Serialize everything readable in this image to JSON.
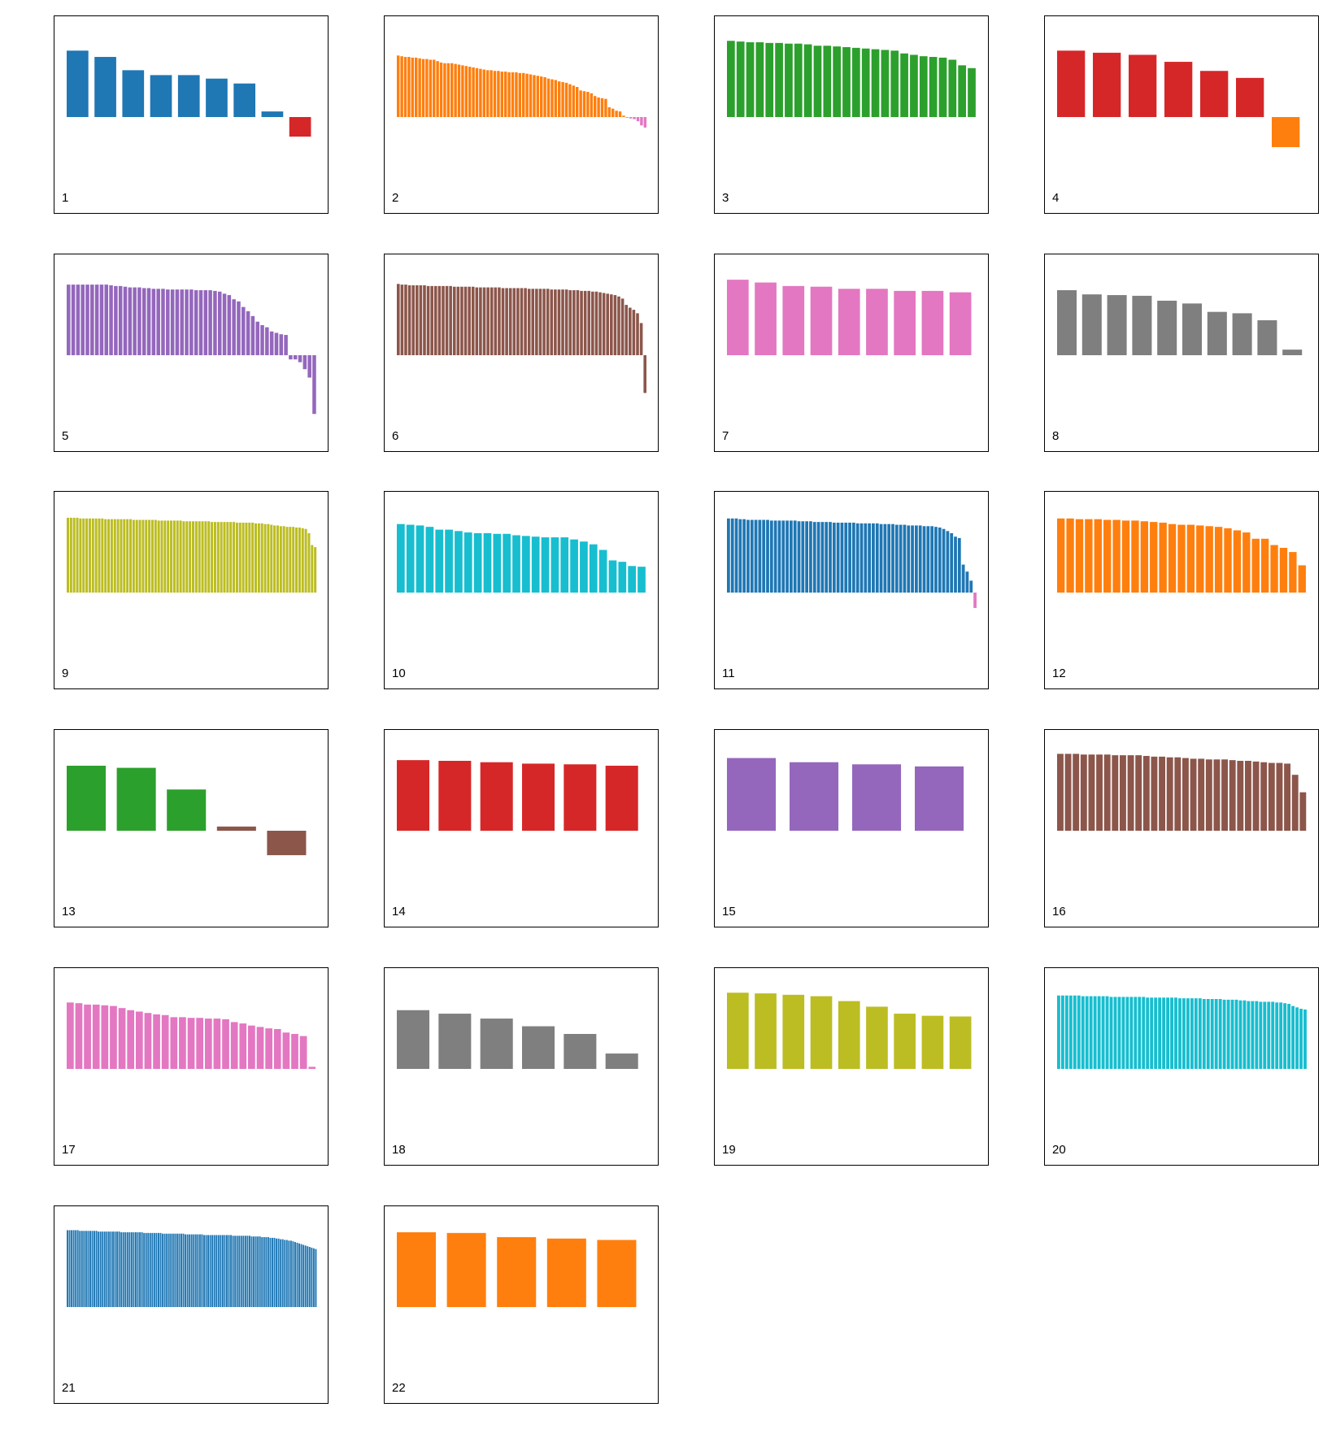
{
  "chart_data": [
    {
      "type": "bar",
      "label": "1",
      "color": "#1f77b4",
      "neg_color": "#d62728",
      "values": [
        0.95,
        0.86,
        0.67,
        0.6,
        0.6,
        0.55,
        0.48,
        0.08,
        -0.28
      ]
    },
    {
      "type": "bar",
      "label": "2",
      "color": "#ff7f0e",
      "neg_color": "#e377c2",
      "values": [
        0.88,
        0.87,
        0.86,
        0.86,
        0.85,
        0.85,
        0.84,
        0.83,
        0.83,
        0.82,
        0.82,
        0.8,
        0.78,
        0.77,
        0.77,
        0.77,
        0.76,
        0.75,
        0.74,
        0.73,
        0.72,
        0.71,
        0.7,
        0.69,
        0.68,
        0.67,
        0.67,
        0.66,
        0.66,
        0.65,
        0.65,
        0.64,
        0.64,
        0.64,
        0.63,
        0.63,
        0.62,
        0.61,
        0.6,
        0.59,
        0.58,
        0.57,
        0.55,
        0.54,
        0.53,
        0.51,
        0.5,
        0.49,
        0.47,
        0.45,
        0.43,
        0.38,
        0.37,
        0.36,
        0.34,
        0.3,
        0.28,
        0.27,
        0.26,
        0.14,
        0.12,
        0.09,
        0.08,
        0.02,
        -0.01,
        -0.02,
        -0.03,
        -0.06,
        -0.12,
        -0.15
      ]
    },
    {
      "type": "bar",
      "label": "3",
      "color": "#2ca02c",
      "values": [
        1.09,
        1.08,
        1.07,
        1.07,
        1.06,
        1.06,
        1.05,
        1.05,
        1.04,
        1.02,
        1.02,
        1.01,
        1.0,
        0.99,
        0.98,
        0.97,
        0.96,
        0.95,
        0.91,
        0.89,
        0.87,
        0.86,
        0.85,
        0.82,
        0.74,
        0.7
      ]
    },
    {
      "type": "bar",
      "label": "4",
      "color": "#d62728",
      "neg_color": "#ff7f0e",
      "values": [
        0.95,
        0.92,
        0.89,
        0.79,
        0.66,
        0.56,
        -0.43
      ]
    },
    {
      "type": "bar",
      "label": "5",
      "color": "#9467bd",
      "values": [
        1.01,
        1.01,
        1.01,
        1.01,
        1.01,
        1.01,
        1.01,
        1.01,
        1.01,
        1.0,
        0.99,
        0.99,
        0.98,
        0.97,
        0.97,
        0.97,
        0.96,
        0.96,
        0.95,
        0.95,
        0.95,
        0.94,
        0.94,
        0.94,
        0.94,
        0.94,
        0.94,
        0.93,
        0.93,
        0.93,
        0.93,
        0.92,
        0.91,
        0.88,
        0.86,
        0.8,
        0.77,
        0.69,
        0.63,
        0.56,
        0.48,
        0.43,
        0.4,
        0.34,
        0.32,
        0.3,
        0.29,
        -0.06,
        -0.06,
        -0.1,
        -0.2,
        -0.32,
        -0.84
      ]
    },
    {
      "type": "bar",
      "label": "6",
      "color": "#8c564b",
      "values": [
        1.02,
        1.01,
        1.01,
        1.0,
        1.0,
        1.0,
        1.0,
        1.0,
        0.99,
        0.99,
        0.99,
        0.99,
        0.99,
        0.99,
        0.99,
        0.98,
        0.98,
        0.98,
        0.98,
        0.98,
        0.98,
        0.97,
        0.97,
        0.97,
        0.97,
        0.97,
        0.97,
        0.97,
        0.96,
        0.96,
        0.96,
        0.96,
        0.96,
        0.96,
        0.96,
        0.95,
        0.95,
        0.95,
        0.95,
        0.95,
        0.95,
        0.94,
        0.94,
        0.94,
        0.94,
        0.94,
        0.93,
        0.93,
        0.93,
        0.92,
        0.92,
        0.92,
        0.91,
        0.91,
        0.9,
        0.89,
        0.88,
        0.87,
        0.86,
        0.84,
        0.81,
        0.72,
        0.68,
        0.65,
        0.6,
        0.46,
        -0.54
      ]
    },
    {
      "type": "bar",
      "label": "7",
      "color": "#e377c2",
      "values": [
        1.08,
        1.04,
        0.99,
        0.98,
        0.95,
        0.95,
        0.92,
        0.92,
        0.9
      ]
    },
    {
      "type": "bar",
      "label": "8",
      "color": "#7f7f7f",
      "values": [
        0.93,
        0.87,
        0.86,
        0.85,
        0.78,
        0.74,
        0.62,
        0.6,
        0.5,
        0.08
      ]
    },
    {
      "type": "bar",
      "label": "9",
      "color": "#bcbd22",
      "values": [
        1.07,
        1.07,
        1.07,
        1.07,
        1.06,
        1.06,
        1.06,
        1.06,
        1.06,
        1.06,
        1.06,
        1.06,
        1.05,
        1.05,
        1.05,
        1.05,
        1.05,
        1.05,
        1.05,
        1.05,
        1.05,
        1.04,
        1.04,
        1.04,
        1.04,
        1.04,
        1.04,
        1.04,
        1.04,
        1.03,
        1.03,
        1.03,
        1.03,
        1.03,
        1.03,
        1.03,
        1.03,
        1.02,
        1.02,
        1.02,
        1.02,
        1.02,
        1.02,
        1.02,
        1.02,
        1.02,
        1.01,
        1.01,
        1.01,
        1.01,
        1.01,
        1.01,
        1.01,
        1.01,
        1.0,
        1.0,
        1.0,
        1.0,
        1.0,
        1.0,
        0.99,
        0.99,
        0.99,
        0.98,
        0.98,
        0.97,
        0.96,
        0.96,
        0.95,
        0.95,
        0.94,
        0.94,
        0.94,
        0.93,
        0.93,
        0.92,
        0.91,
        0.85,
        0.68,
        0.65
      ]
    },
    {
      "type": "bar",
      "label": "10",
      "color": "#17becf",
      "values": [
        0.98,
        0.97,
        0.96,
        0.94,
        0.9,
        0.9,
        0.88,
        0.86,
        0.85,
        0.85,
        0.84,
        0.84,
        0.82,
        0.81,
        0.8,
        0.79,
        0.79,
        0.79,
        0.76,
        0.73,
        0.69,
        0.61,
        0.46,
        0.44,
        0.38,
        0.37
      ]
    },
    {
      "type": "bar",
      "label": "11",
      "color": "#1f77b4",
      "neg_color": "#e377c2",
      "values": [
        1.06,
        1.06,
        1.06,
        1.05,
        1.05,
        1.04,
        1.04,
        1.04,
        1.04,
        1.04,
        1.04,
        1.03,
        1.03,
        1.03,
        1.03,
        1.03,
        1.03,
        1.03,
        1.02,
        1.02,
        1.02,
        1.02,
        1.01,
        1.01,
        1.01,
        1.01,
        1.01,
        1.0,
        1.0,
        1.0,
        1.0,
        1.0,
        1.0,
        0.99,
        0.99,
        0.99,
        0.99,
        0.99,
        0.99,
        0.98,
        0.98,
        0.98,
        0.98,
        0.97,
        0.97,
        0.97,
        0.96,
        0.96,
        0.96,
        0.96,
        0.95,
        0.95,
        0.95,
        0.94,
        0.93,
        0.91,
        0.88,
        0.85,
        0.8,
        0.78,
        0.4,
        0.3,
        0.17,
        -0.22
      ]
    },
    {
      "type": "bar",
      "label": "12",
      "color": "#ff7f0e",
      "values": [
        1.06,
        1.06,
        1.05,
        1.05,
        1.05,
        1.04,
        1.04,
        1.03,
        1.03,
        1.02,
        1.01,
        1.0,
        0.98,
        0.97,
        0.97,
        0.96,
        0.95,
        0.94,
        0.92,
        0.89,
        0.86,
        0.77,
        0.77,
        0.68,
        0.64,
        0.58,
        0.39
      ]
    },
    {
      "type": "bar",
      "label": "13",
      "color": "#2ca02c",
      "neg_color": "#8c564b",
      "values": [
        0.93,
        0.9,
        0.59,
        0.06,
        -0.35
      ],
      "colors": [
        "#2ca02c",
        "#2ca02c",
        "#2ca02c",
        "#8c564b",
        "#8c564b"
      ]
    },
    {
      "type": "bar",
      "label": "14",
      "color": "#d62728",
      "values": [
        1.01,
        1.0,
        0.98,
        0.96,
        0.95,
        0.93
      ]
    },
    {
      "type": "bar",
      "label": "15",
      "color": "#9467bd",
      "values": [
        1.04,
        0.98,
        0.95,
        0.92
      ]
    },
    {
      "type": "bar",
      "label": "16",
      "color": "#8c564b",
      "values": [
        1.1,
        1.1,
        1.1,
        1.09,
        1.09,
        1.09,
        1.09,
        1.08,
        1.08,
        1.08,
        1.08,
        1.07,
        1.06,
        1.06,
        1.05,
        1.05,
        1.04,
        1.03,
        1.03,
        1.02,
        1.02,
        1.02,
        1.01,
        1.0,
        1.0,
        0.99,
        0.98,
        0.97,
        0.97,
        0.96,
        0.8,
        0.55
      ]
    },
    {
      "type": "bar",
      "label": "17",
      "color": "#e377c2",
      "values": [
        0.95,
        0.94,
        0.92,
        0.92,
        0.91,
        0.9,
        0.87,
        0.84,
        0.82,
        0.8,
        0.78,
        0.77,
        0.74,
        0.74,
        0.73,
        0.73,
        0.72,
        0.72,
        0.71,
        0.67,
        0.65,
        0.62,
        0.6,
        0.58,
        0.57,
        0.52,
        0.5,
        0.47,
        0.03
      ]
    },
    {
      "type": "bar",
      "label": "18",
      "color": "#7f7f7f",
      "values": [
        0.84,
        0.79,
        0.72,
        0.61,
        0.5,
        0.22
      ]
    },
    {
      "type": "bar",
      "label": "19",
      "color": "#bcbd22",
      "values": [
        1.09,
        1.08,
        1.06,
        1.04,
        0.97,
        0.89,
        0.79,
        0.76,
        0.75
      ]
    },
    {
      "type": "bar",
      "label": "20",
      "color": "#17becf",
      "values": [
        1.05,
        1.05,
        1.05,
        1.05,
        1.05,
        1.05,
        1.04,
        1.04,
        1.04,
        1.04,
        1.04,
        1.04,
        1.04,
        1.03,
        1.03,
        1.03,
        1.03,
        1.03,
        1.03,
        1.03,
        1.03,
        1.03,
        1.02,
        1.02,
        1.02,
        1.02,
        1.02,
        1.02,
        1.02,
        1.02,
        1.01,
        1.01,
        1.01,
        1.01,
        1.01,
        1.01,
        1.0,
        1.0,
        1.0,
        1.0,
        1.0,
        0.99,
        0.99,
        0.99,
        0.99,
        0.98,
        0.98,
        0.97,
        0.97,
        0.97,
        0.96,
        0.96,
        0.96,
        0.96,
        0.95,
        0.95,
        0.94,
        0.93,
        0.9,
        0.88,
        0.86,
        0.85
      ]
    },
    {
      "type": "bar",
      "label": "21",
      "color": "#1f77b4",
      "values": [
        1.1,
        1.1,
        1.1,
        1.1,
        1.1,
        1.1,
        1.09,
        1.09,
        1.09,
        1.09,
        1.09,
        1.09,
        1.09,
        1.09,
        1.09,
        1.08,
        1.08,
        1.08,
        1.08,
        1.08,
        1.08,
        1.08,
        1.08,
        1.08,
        1.08,
        1.08,
        1.07,
        1.07,
        1.07,
        1.07,
        1.07,
        1.07,
        1.07,
        1.07,
        1.07,
        1.07,
        1.07,
        1.06,
        1.06,
        1.06,
        1.06,
        1.06,
        1.06,
        1.06,
        1.06,
        1.06,
        1.05,
        1.05,
        1.05,
        1.05,
        1.05,
        1.05,
        1.05,
        1.05,
        1.05,
        1.05,
        1.05,
        1.04,
        1.04,
        1.04,
        1.04,
        1.04,
        1.04,
        1.04,
        1.04,
        1.04,
        1.03,
        1.03,
        1.03,
        1.03,
        1.03,
        1.03,
        1.03,
        1.03,
        1.03,
        1.03,
        1.03,
        1.03,
        1.03,
        1.03,
        1.02,
        1.02,
        1.02,
        1.02,
        1.02,
        1.02,
        1.02,
        1.02,
        1.02,
        1.01,
        1.01,
        1.01,
        1.01,
        1.01,
        1.0,
        1.0,
        1.0,
        1.0,
        0.99,
        0.99,
        0.99,
        0.98,
        0.98,
        0.97,
        0.97,
        0.96,
        0.96,
        0.95,
        0.95,
        0.94,
        0.93,
        0.92,
        0.91,
        0.9,
        0.89,
        0.88,
        0.87,
        0.86,
        0.85,
        0.84,
        0.83
      ]
    },
    {
      "type": "bar",
      "label": "22",
      "color": "#ff7f0e",
      "values": [
        1.07,
        1.06,
        1.0,
        0.98,
        0.96
      ]
    }
  ]
}
